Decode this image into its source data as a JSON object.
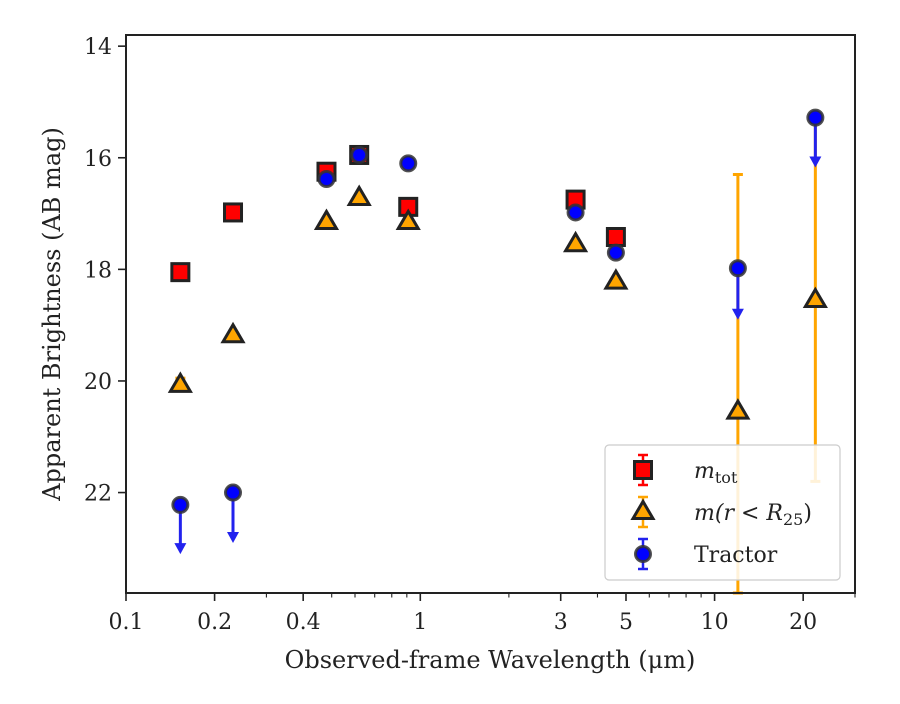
{
  "chart_data": {
    "type": "scatter",
    "title": "",
    "xlabel": "Observed-frame Wavelength (μm)",
    "ylabel": "Apparent Brightness (AB mag)",
    "xscale": "log",
    "xlim": [
      0.1,
      30
    ],
    "ylim": [
      23.8,
      13.8
    ],
    "y_inverted": true,
    "x_ticks": [
      {
        "value": 0.1,
        "label": "0.1"
      },
      {
        "value": 0.2,
        "label": "0.2"
      },
      {
        "value": 0.4,
        "label": "0.4"
      },
      {
        "value": 1,
        "label": "1"
      },
      {
        "value": 3,
        "label": "3"
      },
      {
        "value": 5,
        "label": "5"
      },
      {
        "value": 10,
        "label": "10"
      },
      {
        "value": 20,
        "label": "20"
      }
    ],
    "y_ticks": [
      {
        "value": 14,
        "label": "14"
      },
      {
        "value": 16,
        "label": "16"
      },
      {
        "value": 18,
        "label": "18"
      },
      {
        "value": 20,
        "label": "20"
      },
      {
        "value": 22,
        "label": "22"
      }
    ],
    "grid": false,
    "legend_position": "bottom-right",
    "series": [
      {
        "name": "m_tot",
        "legend_main": "m",
        "legend_sub": "tot",
        "marker": "square",
        "color": "#ff0000",
        "edge_color": "#222222",
        "errorbar_color": "#ff0000",
        "points": [
          {
            "x": 0.153,
            "y": 18.05
          },
          {
            "x": 0.231,
            "y": 16.98
          },
          {
            "x": 0.48,
            "y": 16.25
          },
          {
            "x": 0.62,
            "y": 15.95
          },
          {
            "x": 0.91,
            "y": 16.88
          },
          {
            "x": 3.37,
            "y": 16.75
          },
          {
            "x": 4.62,
            "y": 17.42
          }
        ]
      },
      {
        "name": "m(r < R25)",
        "legend_main": "m(r < R",
        "legend_sub": "25",
        "legend_end": ")",
        "marker": "triangle",
        "color": "#ffa500",
        "edge_color": "#222222",
        "errorbar_color": "#ffa500",
        "points": [
          {
            "x": 0.153,
            "y": 20.07,
            "err_low": 19.95,
            "err_high": 20.15
          },
          {
            "x": 0.231,
            "y": 19.18
          },
          {
            "x": 0.48,
            "y": 17.15
          },
          {
            "x": 0.62,
            "y": 16.72
          },
          {
            "x": 0.91,
            "y": 17.15
          },
          {
            "x": 3.37,
            "y": 17.55
          },
          {
            "x": 4.62,
            "y": 18.22
          },
          {
            "x": 12.0,
            "y": 20.55,
            "err_low": 16.3,
            "err_high": 23.8
          },
          {
            "x": 22.0,
            "y": 18.55,
            "err_low": 15.3,
            "err_high": 21.8
          }
        ]
      },
      {
        "name": "Tractor",
        "legend_main": "Tractor",
        "marker": "circle",
        "color": "#0000ff",
        "edge_color": "#333333",
        "errorbar_color": "#2222ee",
        "points": [
          {
            "x": 0.153,
            "y": 22.22,
            "upper_limit": true,
            "arrow_to": 23.05
          },
          {
            "x": 0.231,
            "y": 22.0,
            "upper_limit": true,
            "arrow_to": 22.85
          },
          {
            "x": 0.48,
            "y": 16.38
          },
          {
            "x": 0.62,
            "y": 15.95
          },
          {
            "x": 0.91,
            "y": 16.1
          },
          {
            "x": 3.37,
            "y": 16.98
          },
          {
            "x": 4.62,
            "y": 17.7
          },
          {
            "x": 12.0,
            "y": 17.98,
            "upper_limit": true,
            "arrow_to": 18.85
          },
          {
            "x": 22.0,
            "y": 15.28,
            "upper_limit": true,
            "arrow_to": 16.12
          }
        ]
      }
    ]
  }
}
